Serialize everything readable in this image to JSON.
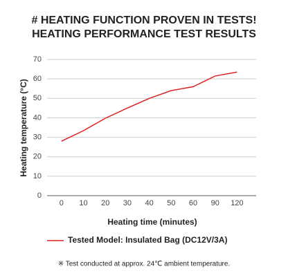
{
  "chart_data": {
    "type": "line",
    "title": "# HEATING FUNCTION PROVEN IN TESTS!",
    "subtitle": "HEATING PERFORMANCE TEST RESULTS",
    "x_label": "Heating time (minutes)",
    "y_label": "Heating temperature (°C)",
    "categories": [
      "0",
      "10",
      "20",
      "30",
      "40",
      "50",
      "60",
      "90",
      "120"
    ],
    "series": [
      {
        "name": "Tested Model: Insulated Bag (DC12V/3A)",
        "color": "#e02020",
        "values": [
          28,
          33.4,
          39.8,
          45,
          50,
          54,
          56,
          61.5,
          63.5
        ]
      }
    ],
    "ylim": [
      0,
      70
    ],
    "yticks": [
      0,
      10,
      20,
      30,
      40,
      50,
      60,
      70
    ],
    "grid": true,
    "note": "※ Test conducted at approx. 24℃ ambient temperature."
  }
}
